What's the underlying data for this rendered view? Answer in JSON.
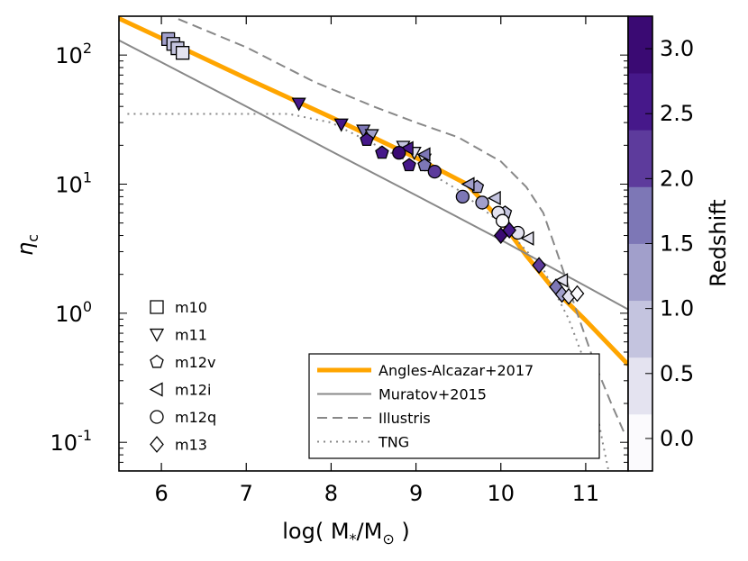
{
  "chart_data": {
    "type": "scatter",
    "title": "",
    "xlabel": "log( M",
    "xlabel_sub1": "*",
    "xlabel_mid": "/M",
    "xlabel_sub2": "⊙",
    "xlabel_end": " )",
    "ylabel": "η",
    "ylabel_sub": "c",
    "xlim": [
      5.5,
      11.5
    ],
    "ylim": [
      0.06,
      200
    ],
    "yscale": "log",
    "xticks": [
      6,
      7,
      8,
      9,
      10,
      11
    ],
    "xtick_labels": [
      "6",
      "7",
      "8",
      "9",
      "10",
      "11"
    ],
    "yticks": [
      {
        "value": 100,
        "base": "10",
        "exp": "2"
      },
      {
        "value": 10,
        "base": "10",
        "exp": "1"
      },
      {
        "value": 1,
        "base": "10",
        "exp": "0"
      },
      {
        "value": 0.1,
        "base": "10",
        "exp": "-1"
      }
    ],
    "colorbar": {
      "label": "Redshift",
      "min": -0.25,
      "max": 3.25,
      "ticks": [
        "0.0",
        "0.5",
        "1.0",
        "1.5",
        "2.0",
        "2.5",
        "3.0"
      ],
      "tick_values": [
        0,
        0.5,
        1,
        1.5,
        2,
        2.5,
        3
      ],
      "colors": [
        "#fbfafd",
        "#e4e3f0",
        "#c4c4df",
        "#a19fcb",
        "#7d77b6",
        "#5d3b9c",
        "#46188a",
        "#3a0a73"
      ]
    },
    "lines": [
      {
        "name": "Angles-Alcazar+2017",
        "color": "#ffa500",
        "style": "solid",
        "width": 5,
        "points": [
          [
            5.5,
            192
          ],
          [
            6.0,
            135
          ],
          [
            7.0,
            66
          ],
          [
            8.0,
            33
          ],
          [
            9.0,
            16
          ],
          [
            9.6,
            10
          ],
          [
            10.0,
            5.2
          ],
          [
            10.3,
            2.8
          ],
          [
            10.6,
            1.6
          ],
          [
            11.0,
            0.88
          ],
          [
            11.5,
            0.4
          ]
        ]
      },
      {
        "name": "Muratov+2015",
        "color": "#888888",
        "style": "solid",
        "width": 2,
        "points": [
          [
            5.5,
            130
          ],
          [
            6.0,
            88
          ],
          [
            7.0,
            40
          ],
          [
            8.0,
            18
          ],
          [
            9.0,
            8.2
          ],
          [
            10.0,
            3.7
          ],
          [
            10.5,
            2.45
          ],
          [
            11.0,
            1.62
          ],
          [
            11.5,
            1.07
          ]
        ]
      },
      {
        "name": "Illustris",
        "color": "#888888",
        "style": "dashed",
        "width": 2,
        "points": [
          [
            6.2,
            190
          ],
          [
            7.0,
            115
          ],
          [
            7.8,
            62
          ],
          [
            8.5,
            40
          ],
          [
            9.0,
            30
          ],
          [
            9.5,
            23
          ],
          [
            10.0,
            15
          ],
          [
            10.3,
            9.5
          ],
          [
            10.5,
            6
          ],
          [
            10.7,
            2.5
          ],
          [
            10.9,
            1.0
          ],
          [
            11.1,
            0.42
          ],
          [
            11.3,
            0.2
          ],
          [
            11.45,
            0.12
          ]
        ]
      },
      {
        "name": "TNG",
        "color": "#888888",
        "style": "dotted",
        "width": 2,
        "points": [
          [
            5.6,
            35
          ],
          [
            7.5,
            35
          ],
          [
            8.0,
            30
          ],
          [
            9.0,
            14
          ],
          [
            9.5,
            9
          ],
          [
            10.0,
            5
          ],
          [
            10.5,
            2.2
          ],
          [
            10.8,
            0.9
          ],
          [
            11.0,
            0.4
          ],
          [
            11.1,
            0.22
          ],
          [
            11.2,
            0.1
          ],
          [
            11.27,
            0.06
          ]
        ]
      }
    ],
    "series": [
      {
        "name": "m10",
        "marker": "square",
        "points": [
          {
            "x": 6.08,
            "y": 133,
            "z": 1.4
          },
          {
            "x": 6.14,
            "y": 122,
            "z": 1.0
          },
          {
            "x": 6.19,
            "y": 113,
            "z": 0.8
          },
          {
            "x": 6.25,
            "y": 104,
            "z": 0.2
          }
        ]
      },
      {
        "name": "m11",
        "marker": "tri-down",
        "points": [
          {
            "x": 7.62,
            "y": 42,
            "z": 2.8
          },
          {
            "x": 8.12,
            "y": 29,
            "z": 2.5
          },
          {
            "x": 8.38,
            "y": 26,
            "z": 1.5
          },
          {
            "x": 8.48,
            "y": 24,
            "z": 1.1
          },
          {
            "x": 8.85,
            "y": 19.5,
            "z": 0.7
          },
          {
            "x": 8.98,
            "y": 17.5,
            "z": 0.3
          },
          {
            "x": 9.1,
            "y": 15.5,
            "z": 0.5
          }
        ]
      },
      {
        "name": "m12v",
        "marker": "pentagon",
        "points": [
          {
            "x": 8.42,
            "y": 22,
            "z": 2.8
          },
          {
            "x": 8.6,
            "y": 17.5,
            "z": 2.7
          },
          {
            "x": 8.92,
            "y": 14,
            "z": 2.4
          },
          {
            "x": 9.1,
            "y": 14,
            "z": 1.8
          },
          {
            "x": 9.72,
            "y": 9.5,
            "z": 1.1
          },
          {
            "x": 10.05,
            "y": 6,
            "z": 0.7
          }
        ]
      },
      {
        "name": "m12i",
        "marker": "tri-left",
        "points": [
          {
            "x": 8.9,
            "y": 19,
            "z": 2.5
          },
          {
            "x": 9.1,
            "y": 17,
            "z": 1.8
          },
          {
            "x": 9.62,
            "y": 10,
            "z": 1.2
          },
          {
            "x": 9.93,
            "y": 7.8,
            "z": 0.9
          },
          {
            "x": 10.32,
            "y": 3.8,
            "z": 0.4
          },
          {
            "x": 10.72,
            "y": 1.8,
            "z": 0.5
          }
        ]
      },
      {
        "name": "m12q",
        "marker": "circle",
        "points": [
          {
            "x": 8.8,
            "y": 17.5,
            "z": 3.1
          },
          {
            "x": 9.22,
            "y": 12.5,
            "z": 2.2
          },
          {
            "x": 9.55,
            "y": 8,
            "z": 1.6
          },
          {
            "x": 9.78,
            "y": 7.2,
            "z": 1.2
          },
          {
            "x": 9.97,
            "y": 6,
            "z": 0.6
          },
          {
            "x": 10.02,
            "y": 5.2,
            "z": 0.1
          },
          {
            "x": 10.2,
            "y": 4.2,
            "z": 0.2
          }
        ]
      },
      {
        "name": "m13",
        "marker": "diamond",
        "points": [
          {
            "x": 10.0,
            "y": 4.0,
            "z": 3.1
          },
          {
            "x": 10.1,
            "y": 4.4,
            "z": 2.6
          },
          {
            "x": 10.45,
            "y": 2.35,
            "z": 2.0
          },
          {
            "x": 10.65,
            "y": 1.6,
            "z": 1.6
          },
          {
            "x": 10.72,
            "y": 1.4,
            "z": 1.1
          },
          {
            "x": 10.8,
            "y": 1.35,
            "z": 0.5
          },
          {
            "x": 10.9,
            "y": 1.42,
            "z": 0.1
          }
        ]
      }
    ],
    "marker_legend": [
      "m10",
      "m11",
      "m12v",
      "m12i",
      "m12q",
      "m13"
    ],
    "line_legend": [
      "Angles-Alcazar+2017",
      "Muratov+2015",
      "Illustris",
      "TNG"
    ],
    "grid": false,
    "legend_placement": "lower-right"
  }
}
